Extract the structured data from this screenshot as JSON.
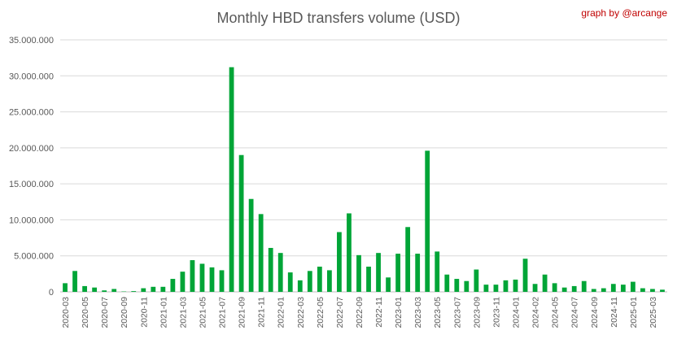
{
  "chart_data": {
    "type": "bar",
    "title": "Monthly HBD transfers volume (USD)",
    "watermark": "graph by @arcange",
    "xlabel": "",
    "ylabel": "",
    "ylim": [
      0,
      35000000
    ],
    "y_ticks": [
      0,
      5000000,
      10000000,
      15000000,
      20000000,
      25000000,
      30000000,
      35000000
    ],
    "y_tick_labels": [
      "0",
      "5.000.000",
      "10.000.000",
      "15.000.000",
      "20.000.000",
      "25.000.000",
      "30.000.000",
      "35.000.000"
    ],
    "grid": true,
    "legend": "none",
    "color": "#00a537",
    "x_tick_labels": [
      "2020-03",
      "2020-05",
      "2020-07",
      "2020-09",
      "2020-11",
      "2021-01",
      "2021-03",
      "2021-05",
      "2021-07",
      "2021-09",
      "2021-11",
      "2022-01",
      "2022-03",
      "2022-05",
      "2022-07",
      "2022-09",
      "2022-11",
      "2023-01",
      "2023-03",
      "2023-05",
      "2023-07",
      "2023-09",
      "2023-11",
      "2024-01",
      "2024-02",
      "2024-05",
      "2024-07",
      "2024-09",
      "2024-11",
      "2025-01",
      "2025-03"
    ],
    "values": [
      1200000,
      2900000,
      800000,
      600000,
      200000,
      400000,
      50000,
      100000,
      500000,
      700000,
      700000,
      1800000,
      2800000,
      4400000,
      3900000,
      3400000,
      3000000,
      31200000,
      19000000,
      12900000,
      10800000,
      6100000,
      5400000,
      2700000,
      1600000,
      2900000,
      3500000,
      3000000,
      8300000,
      10900000,
      5100000,
      3500000,
      5400000,
      2000000,
      5300000,
      9000000,
      5300000,
      19600000,
      5600000,
      2400000,
      1800000,
      1500000,
      3100000,
      1000000,
      1000000,
      1600000,
      1700000,
      4600000,
      1100000,
      2400000,
      1200000,
      600000,
      800000,
      1500000,
      400000,
      500000,
      1100000,
      1000000,
      1400000,
      500000,
      400000,
      300000
    ]
  }
}
